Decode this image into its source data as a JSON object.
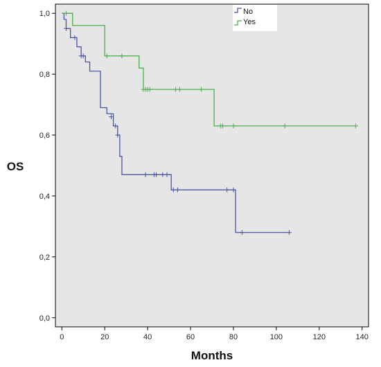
{
  "chart_data": {
    "type": "line",
    "title": "",
    "xlabel": "Months",
    "ylabel": "OS",
    "xlim": [
      -3,
      143
    ],
    "ylim": [
      -0.03,
      1.03
    ],
    "x_ticks": [
      0,
      20,
      40,
      60,
      80,
      100,
      120,
      140
    ],
    "x_tick_labels": [
      "0",
      "20",
      "40",
      "60",
      "80",
      "100",
      "120",
      "140"
    ],
    "y_ticks": [
      0.0,
      0.2,
      0.4,
      0.6,
      0.8,
      1.0
    ],
    "y_tick_labels": [
      "0,0",
      "0,2",
      "0,4",
      "0,6",
      "0,8",
      "1,0"
    ],
    "grid": false,
    "legend_position": "top-center",
    "background": "#e6e6e6",
    "series": [
      {
        "name": "No",
        "color": "#4a55a2",
        "steps": [
          [
            0,
            1.0
          ],
          [
            1,
            0.98
          ],
          [
            2,
            0.95
          ],
          [
            4,
            0.92
          ],
          [
            7,
            0.89
          ],
          [
            9,
            0.86
          ],
          [
            11,
            0.84
          ],
          [
            13,
            0.81
          ],
          [
            18,
            0.69
          ],
          [
            21,
            0.67
          ],
          [
            24,
            0.63
          ],
          [
            26,
            0.6
          ],
          [
            27,
            0.53
          ],
          [
            28,
            0.47
          ],
          [
            51,
            0.42
          ],
          [
            81,
            0.28
          ],
          [
            106,
            0.28
          ]
        ],
        "censored": [
          [
            2,
            0.95
          ],
          [
            6,
            0.92
          ],
          [
            9,
            0.86
          ],
          [
            10,
            0.86
          ],
          [
            23,
            0.66
          ],
          [
            25,
            0.63
          ],
          [
            26,
            0.6
          ],
          [
            39,
            0.47
          ],
          [
            43,
            0.47
          ],
          [
            44,
            0.47
          ],
          [
            47,
            0.47
          ],
          [
            49,
            0.47
          ],
          [
            52,
            0.42
          ],
          [
            54,
            0.42
          ],
          [
            77,
            0.42
          ],
          [
            80,
            0.42
          ],
          [
            84,
            0.28
          ],
          [
            106,
            0.28
          ]
        ]
      },
      {
        "name": "Yes",
        "color": "#4aae4a",
        "steps": [
          [
            0,
            1.0
          ],
          [
            5,
            0.96
          ],
          [
            20,
            0.86
          ],
          [
            36,
            0.82
          ],
          [
            38,
            0.75
          ],
          [
            71,
            0.63
          ],
          [
            137,
            0.63
          ]
        ],
        "censored": [
          [
            2,
            1.0
          ],
          [
            21,
            0.86
          ],
          [
            28,
            0.86
          ],
          [
            38,
            0.75
          ],
          [
            39,
            0.75
          ],
          [
            40,
            0.75
          ],
          [
            41,
            0.75
          ],
          [
            53,
            0.75
          ],
          [
            55,
            0.75
          ],
          [
            65,
            0.75
          ],
          [
            74,
            0.63
          ],
          [
            75,
            0.63
          ],
          [
            80,
            0.63
          ],
          [
            104,
            0.63
          ],
          [
            137,
            0.63
          ]
        ]
      }
    ]
  }
}
